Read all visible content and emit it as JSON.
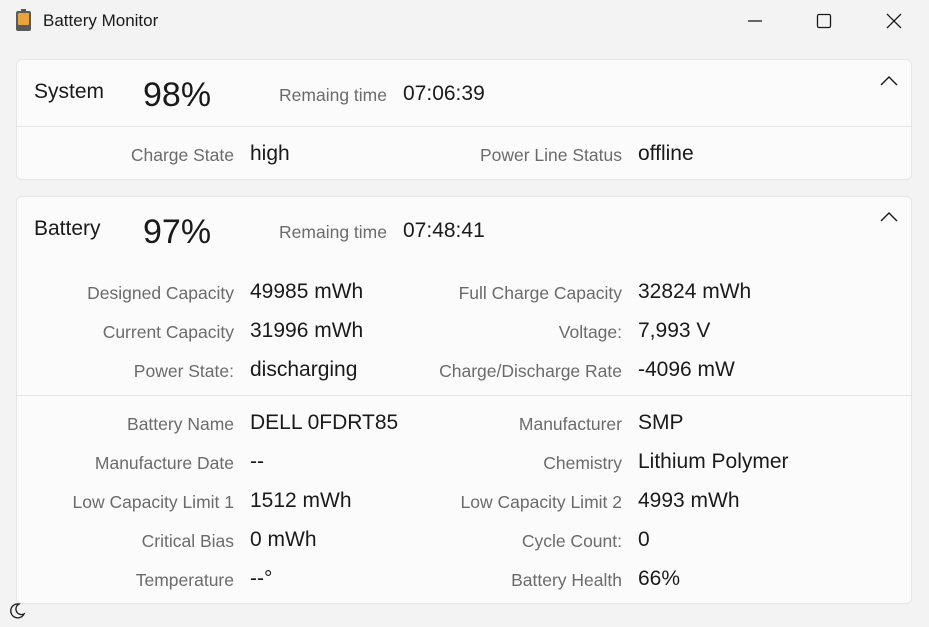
{
  "window": {
    "title": "Battery Monitor"
  },
  "system": {
    "title": "System",
    "percent": "98%",
    "remaining_label": "Remaing time",
    "remaining_value": "07:06:39",
    "charge_state_label": "Charge State",
    "charge_state_value": "high",
    "power_line_label": "Power Line Status",
    "power_line_value": "offline"
  },
  "battery": {
    "title": "Battery",
    "percent": "97%",
    "remaining_label": "Remaing time",
    "remaining_value": "07:48:41",
    "designed_capacity_label": "Designed Capacity",
    "designed_capacity_value": "49985 mWh",
    "full_charge_label": "Full Charge Capacity",
    "full_charge_value": "32824 mWh",
    "current_capacity_label": "Current Capacity",
    "current_capacity_value": "31996 mWh",
    "voltage_label": "Voltage:",
    "voltage_value": "7,993 V",
    "power_state_label": "Power State:",
    "power_state_value": "discharging",
    "rate_label": "Charge/Discharge Rate",
    "rate_value": "-4096 mW",
    "name_label": "Battery Name",
    "name_value": "DELL 0FDRT85",
    "manufacturer_label": "Manufacturer",
    "manufacturer_value": "SMP",
    "mfg_date_label": "Manufacture Date",
    "mfg_date_value": "--",
    "chemistry_label": "Chemistry",
    "chemistry_value": "Lithium Polymer",
    "low_cap1_label": "Low Capacity Limit 1",
    "low_cap1_value": "1512 mWh",
    "low_cap2_label": "Low Capacity Limit 2",
    "low_cap2_value": "4993 mWh",
    "critical_bias_label": "Critical Bias",
    "critical_bias_value": "0 mWh",
    "cycle_count_label": "Cycle Count:",
    "cycle_count_value": "0",
    "temperature_label": "Temperature",
    "temperature_value": "--°",
    "health_label": "Battery Health",
    "health_value": "66%"
  },
  "icons": {
    "app": "battery-icon",
    "minimize": "minimize-icon",
    "maximize": "maximize-icon",
    "close": "close-icon",
    "collapse": "chevron-up-icon",
    "theme": "moon-icon"
  },
  "colors": {
    "battery_fill": "#e8a33a",
    "battery_body": "#555555"
  }
}
